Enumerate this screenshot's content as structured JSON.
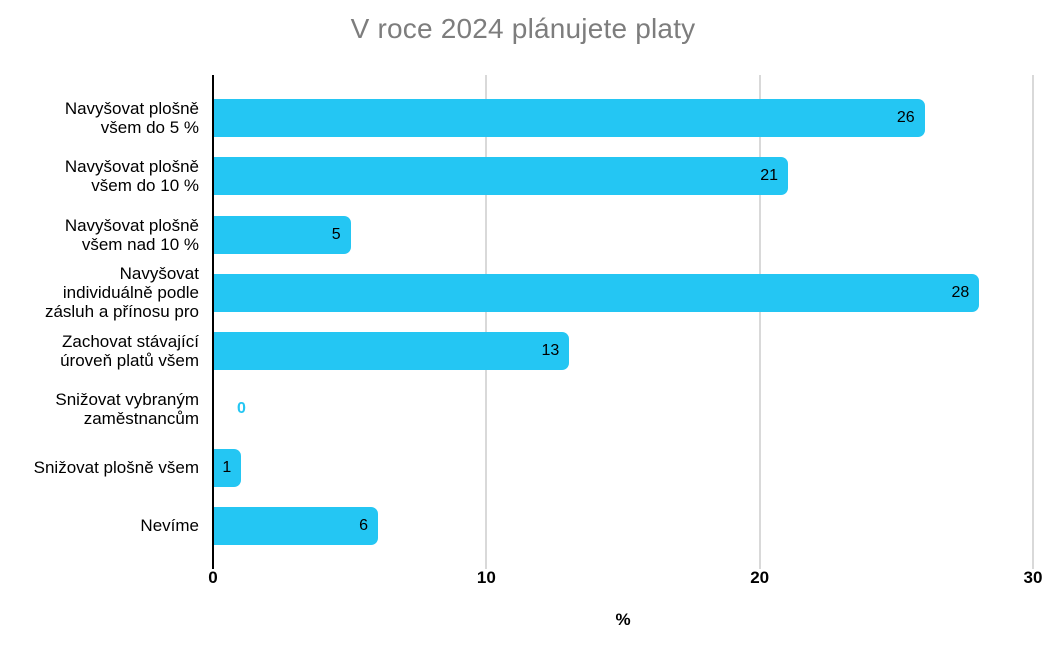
{
  "chart_data": {
    "type": "bar",
    "orientation": "horizontal",
    "title": "V roce 2024 plánujete platy",
    "xlabel": "%",
    "categories": [
      "Navyšovat plošně\nvšem do 5 %",
      "Navyšovat plošně\nvšem do 10 %",
      "Navyšovat plošně\nvšem nad 10 %",
      "Navyšovat\nindividuálně podle\nzásluh a přínosu pro",
      "Zachovat stávající\núroveň platů všem",
      "Snižovat vybraným\nzaměstnancům",
      "Snižovat plošně všem",
      "Nevíme"
    ],
    "values": [
      26,
      21,
      5,
      28,
      13,
      0,
      1,
      6
    ],
    "xlim": [
      0,
      30
    ],
    "xticks": [
      0,
      10,
      20,
      30
    ],
    "grid": "vertical-gridlines-at-xticks",
    "legend": "none",
    "colors": {
      "bar": "#24c6f3",
      "value_label": "#000000",
      "zero_value_label": "#24c6f3",
      "gridline": "#d9d9d9",
      "axis_line": "#000000",
      "title": "#7d7d7d",
      "background": "#ffffff"
    }
  }
}
